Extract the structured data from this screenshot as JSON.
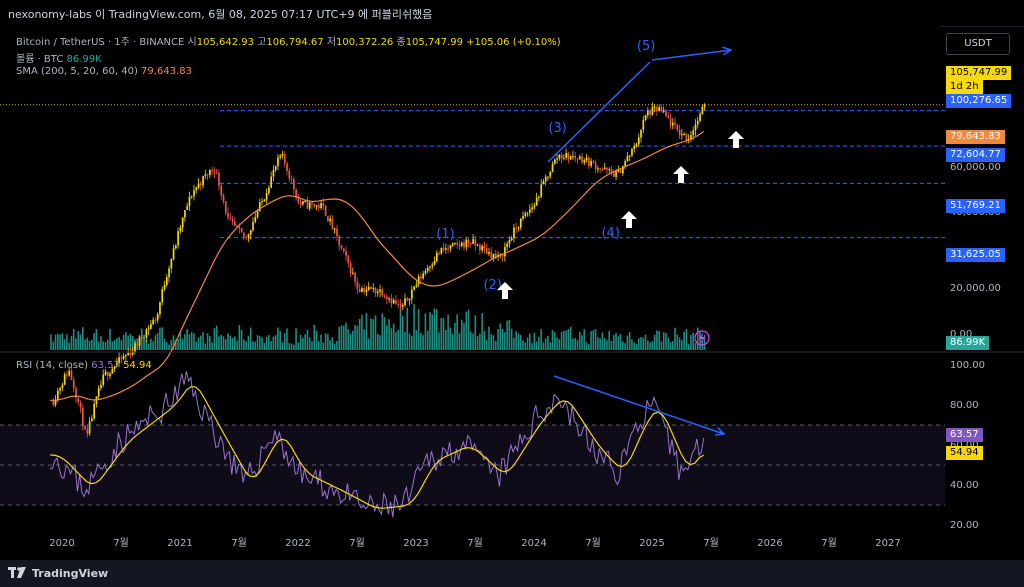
{
  "header": {
    "publish_line": "nexonomy-labs 이 TradingView.com, 6월 08, 2025 07:17 UTC+9 에 퍼블리쉬했음"
  },
  "legend": {
    "symbol": "Bitcoin / TetherUS · 1주 · BINANCE",
    "open_label": "시",
    "open_value": "105,642.93",
    "high_label": "고",
    "high_value": "106,794.67",
    "low_label": "저",
    "low_value": "100,372.26",
    "close_label": "종",
    "close_value": "105,747.99",
    "change_value": "+105.06 (+0.10%)",
    "volume_label": "볼륨 · BTC",
    "volume_value": "86.99K",
    "ma_label": "SMA (200, 5, 20, 60, 40)",
    "ma_value": "79,643.83",
    "rsi_label": "RSI (14, close)",
    "rsi_value": "63.57",
    "rsi_ma_value": "54.94"
  },
  "currency_button": "USDT",
  "price_tags": {
    "last_price": "105,747.99",
    "countdown": "1d 2h",
    "level_top": "100,276.65",
    "ma_price": "79,643.83",
    "level_72k": "72,604.77",
    "level_51k": "51,769.21",
    "level_31k": "31,625.05",
    "volume_tag": "86.99K",
    "rsi_tag": "63.57",
    "rsi_ma_tag": "54.94"
  },
  "colors": {
    "background": "#000000",
    "candle_up": "#f5d90a",
    "candle_down": "#ef5350",
    "volume": "#26a69a",
    "ma": "#f0883e",
    "rsi": "#9575cd",
    "rsi_ma": "#f5d90a",
    "annotation": "#2962ff",
    "level_line": "#2962ff"
  },
  "footer": {
    "brand": "TradingView"
  },
  "chart_data": [
    {
      "type": "candlestick",
      "title": "Bitcoin / TetherUS · 1주 · BINANCE",
      "x_ticks": [
        "2020",
        "7월",
        "2021",
        "7월",
        "2022",
        "7월",
        "2023",
        "7월",
        "2024",
        "7월",
        "2025",
        "7월",
        "2026",
        "7월",
        "2027"
      ],
      "y_ticks": [
        "20,000.00",
        "40,000.00",
        "60,000.00"
      ],
      "y_scale": "log",
      "ohlc_summary": {
        "open": 105642.93,
        "high": 106794.67,
        "low": 100372.26,
        "close": 105747.99
      },
      "moving_average": {
        "name": "SMA (200, 5, 20, 60, 40)",
        "last": 79643.83
      },
      "price_levels": [
        100276.65,
        72604.77,
        51769.21,
        31625.05
      ],
      "price_path": [
        [
          2019.92,
          7200
        ],
        [
          2020.05,
          9500
        ],
        [
          2020.2,
          5000
        ],
        [
          2020.35,
          9000
        ],
        [
          2020.6,
          11500
        ],
        [
          2020.8,
          15500
        ],
        [
          2020.95,
          29000
        ],
        [
          2021.1,
          48000
        ],
        [
          2021.28,
          60000
        ],
        [
          2021.4,
          37000
        ],
        [
          2021.55,
          31000
        ],
        [
          2021.7,
          45000
        ],
        [
          2021.85,
          67000
        ],
        [
          2022.0,
          43000
        ],
        [
          2022.2,
          42000
        ],
        [
          2022.35,
          29000
        ],
        [
          2022.5,
          20000
        ],
        [
          2022.7,
          19500
        ],
        [
          2022.87,
          16500
        ],
        [
          2023.0,
          21000
        ],
        [
          2023.2,
          28000
        ],
        [
          2023.45,
          30500
        ],
        [
          2023.7,
          26000
        ],
        [
          2023.85,
          35000
        ],
        [
          2024.0,
          43000
        ],
        [
          2024.2,
          67000
        ],
        [
          2024.4,
          65000
        ],
        [
          2024.6,
          58000
        ],
        [
          2024.7,
          56000
        ],
        [
          2024.85,
          72000
        ],
        [
          2024.95,
          98000
        ],
        [
          2025.05,
          102000
        ],
        [
          2025.2,
          84000
        ],
        [
          2025.3,
          78000
        ],
        [
          2025.4,
          95000
        ],
        [
          2025.44,
          105747.99
        ]
      ],
      "wave_labels": [
        "(1)",
        "(2)",
        "(3)",
        "(4)",
        "(5)"
      ],
      "volume": {
        "label": "볼륨 · BTC",
        "last": "86.99K"
      },
      "y_extra_tick": "0.00"
    },
    {
      "type": "line",
      "title": "RSI (14, close)",
      "y_ticks": [
        "100.00",
        "80.00",
        "60.00",
        "40.00",
        "20.00"
      ],
      "ylim": [
        20,
        100
      ],
      "bands": [
        70,
        50,
        30
      ],
      "last_rsi": 63.57,
      "last_rsi_ma": 54.94,
      "rsi_path": [
        [
          2019.92,
          55
        ],
        [
          2020.2,
          38
        ],
        [
          2020.5,
          62
        ],
        [
          2020.9,
          80
        ],
        [
          2021.05,
          93
        ],
        [
          2021.3,
          66
        ],
        [
          2021.55,
          40
        ],
        [
          2021.8,
          67
        ],
        [
          2022.0,
          46
        ],
        [
          2022.35,
          36
        ],
        [
          2022.6,
          28
        ],
        [
          2022.9,
          30
        ],
        [
          2023.1,
          52
        ],
        [
          2023.4,
          60
        ],
        [
          2023.7,
          44
        ],
        [
          2024.0,
          72
        ],
        [
          2024.2,
          85
        ],
        [
          2024.5,
          58
        ],
        [
          2024.7,
          46
        ],
        [
          2024.9,
          73
        ],
        [
          2025.0,
          80
        ],
        [
          2025.25,
          46
        ],
        [
          2025.44,
          63.57
        ]
      ]
    }
  ]
}
